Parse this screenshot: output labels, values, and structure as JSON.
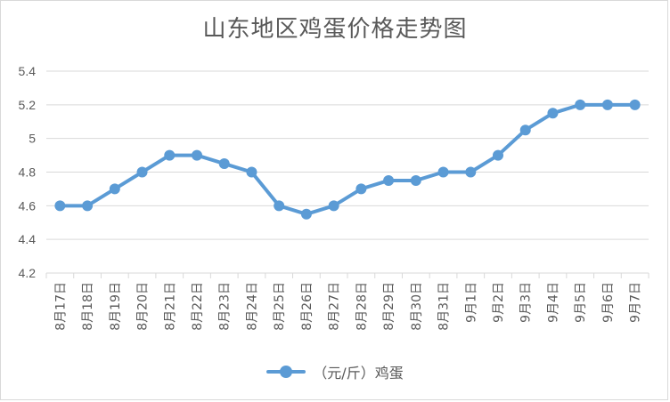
{
  "chart_data": {
    "type": "line",
    "title": "山东地区鸡蛋价格走势图",
    "categories": [
      "8月17日",
      "8月18日",
      "8月19日",
      "8月20日",
      "8月21日",
      "8月22日",
      "8月23日",
      "8月24日",
      "8月25日",
      "8月26日",
      "8月27日",
      "8月28日",
      "8月29日",
      "8月30日",
      "8月31日",
      "9月1日",
      "9月2日",
      "9月3日",
      "9月4日",
      "9月5日",
      "9月6日",
      "9月7日"
    ],
    "series": [
      {
        "name": "（元/斤）鸡蛋",
        "values": [
          4.6,
          4.6,
          4.7,
          4.8,
          4.9,
          4.9,
          4.85,
          4.8,
          4.6,
          4.55,
          4.6,
          4.7,
          4.75,
          4.75,
          4.8,
          4.8,
          4.9,
          5.05,
          5.15,
          5.2,
          5.2,
          5.2
        ]
      }
    ],
    "ylim": [
      4.2,
      5.4
    ],
    "yticks": [
      "4.2",
      "4.4",
      "4.6",
      "4.8",
      "5",
      "5.2",
      "5.4"
    ],
    "grid": true,
    "legend_position": "bottom",
    "colors": {
      "series": "#5b9bd5",
      "grid": "#d9d9d9",
      "text": "#595959"
    }
  }
}
